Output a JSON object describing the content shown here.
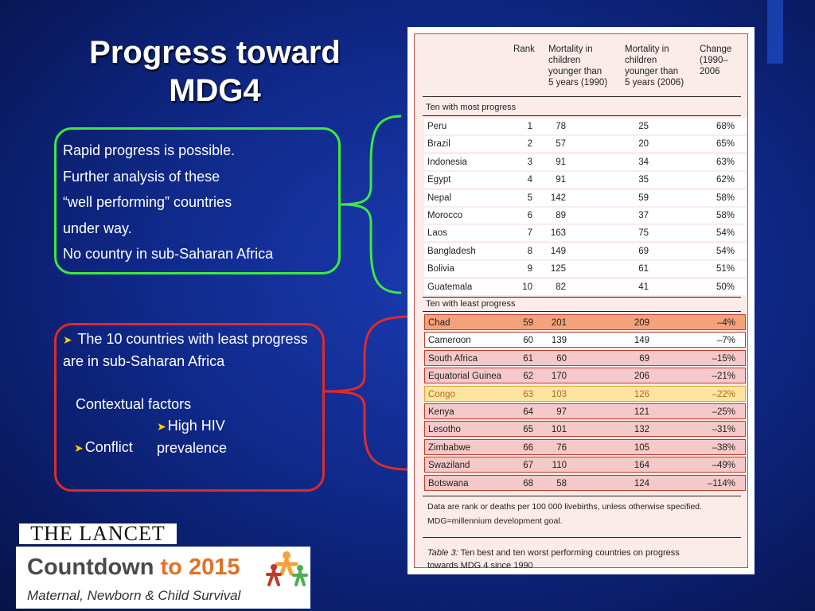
{
  "slide": {
    "title_line1": "Progress toward",
    "title_line2": "MDG4"
  },
  "green_box": {
    "lines": [
      "Rapid progress is possible.",
      "Further analysis of these",
      "“well performing” countries",
      "under way.",
      "No country in sub-Saharan Africa"
    ]
  },
  "red_box": {
    "bullet_text": "The 10 countries with least progress are in sub-Saharan Africa",
    "factors_heading": "Contextual factors",
    "factor_hiv": "High HIV prevalence",
    "factor_conflict": "Conflict"
  },
  "table": {
    "headers": {
      "rank": "Rank",
      "m1990": [
        "Mortality in",
        "children",
        "younger than",
        "5 years (1990)"
      ],
      "m2006": [
        "Mortality in",
        "children",
        "younger than",
        "5 years (2006)"
      ],
      "change": [
        "Change",
        "(1990–",
        "2006"
      ]
    },
    "section_most": "Ten with most progress",
    "section_least": "Ten with least progress",
    "most_progress": [
      {
        "country": "Peru",
        "rank": "1",
        "m1990": "78",
        "m2006": "25",
        "change": "68%"
      },
      {
        "country": "Brazil",
        "rank": "2",
        "m1990": "57",
        "m2006": "20",
        "change": "65%"
      },
      {
        "country": "Indonesia",
        "rank": "3",
        "m1990": "91",
        "m2006": "34",
        "change": "63%"
      },
      {
        "country": "Egypt",
        "rank": "4",
        "m1990": "91",
        "m2006": "35",
        "change": "62%"
      },
      {
        "country": "Nepal",
        "rank": "5",
        "m1990": "142",
        "m2006": "59",
        "change": "58%"
      },
      {
        "country": "Morocco",
        "rank": "6",
        "m1990": "89",
        "m2006": "37",
        "change": "58%"
      },
      {
        "country": "Laos",
        "rank": "7",
        "m1990": "163",
        "m2006": "75",
        "change": "54%"
      },
      {
        "country": "Bangladesh",
        "rank": "8",
        "m1990": "149",
        "m2006": "69",
        "change": "54%"
      },
      {
        "country": "Bolivia",
        "rank": "9",
        "m1990": "125",
        "m2006": "61",
        "change": "51%"
      },
      {
        "country": "Guatemala",
        "rank": "10",
        "m1990": "82",
        "m2006": "41",
        "change": "50%"
      }
    ],
    "least_progress": [
      {
        "country": "Chad",
        "rank": "59",
        "m1990": "201",
        "m2006": "209",
        "change": "–4%",
        "highlight": "orange"
      },
      {
        "country": "Cameroon",
        "rank": "60",
        "m1990": "139",
        "m2006": "149",
        "change": "–7%",
        "highlight": "white"
      },
      {
        "country": "South Africa",
        "rank": "61",
        "m1990": "60",
        "m2006": "69",
        "change": "–15%",
        "highlight": "pink"
      },
      {
        "country": "Equatorial Guinea",
        "rank": "62",
        "m1990": "170",
        "m2006": "206",
        "change": "–21%",
        "highlight": "pink"
      },
      {
        "country": "Congo",
        "rank": "63",
        "m1990": "103",
        "m2006": "126",
        "change": "–22%",
        "highlight": "yellow"
      },
      {
        "country": "Kenya",
        "rank": "64",
        "m1990": "97",
        "m2006": "121",
        "change": "–25%",
        "highlight": "pink"
      },
      {
        "country": "Lesotho",
        "rank": "65",
        "m1990": "101",
        "m2006": "132",
        "change": "–31%",
        "highlight": "pink"
      },
      {
        "country": "Zimbabwe",
        "rank": "66",
        "m1990": "76",
        "m2006": "105",
        "change": "–38%",
        "highlight": "pink"
      },
      {
        "country": "Swaziland",
        "rank": "67",
        "m1990": "110",
        "m2006": "164",
        "change": "–49%",
        "highlight": "pink"
      },
      {
        "country": "Botswana",
        "rank": "68",
        "m1990": "58",
        "m2006": "124",
        "change": "–114%",
        "highlight": "pink"
      }
    ],
    "note_line1": "Data are rank or deaths per 100 000 livebirths, unless otherwise specified.",
    "note_line2": "MDG=millennium development goal.",
    "caption_label": "Table 3:",
    "caption_text": "Ten best and ten worst performing countries on progress",
    "caption_line2": "towards MDG 4 since 1990"
  },
  "logos": {
    "lancet": "THE LANCET",
    "countdown_main": "Countdown",
    "countdown_to": "to 2015",
    "countdown_sub": "Maternal, Newborn & Child Survival"
  },
  "colors": {
    "green_box": "#3ee83e",
    "red_box": "#e02a2a",
    "background": "#102a8c"
  }
}
